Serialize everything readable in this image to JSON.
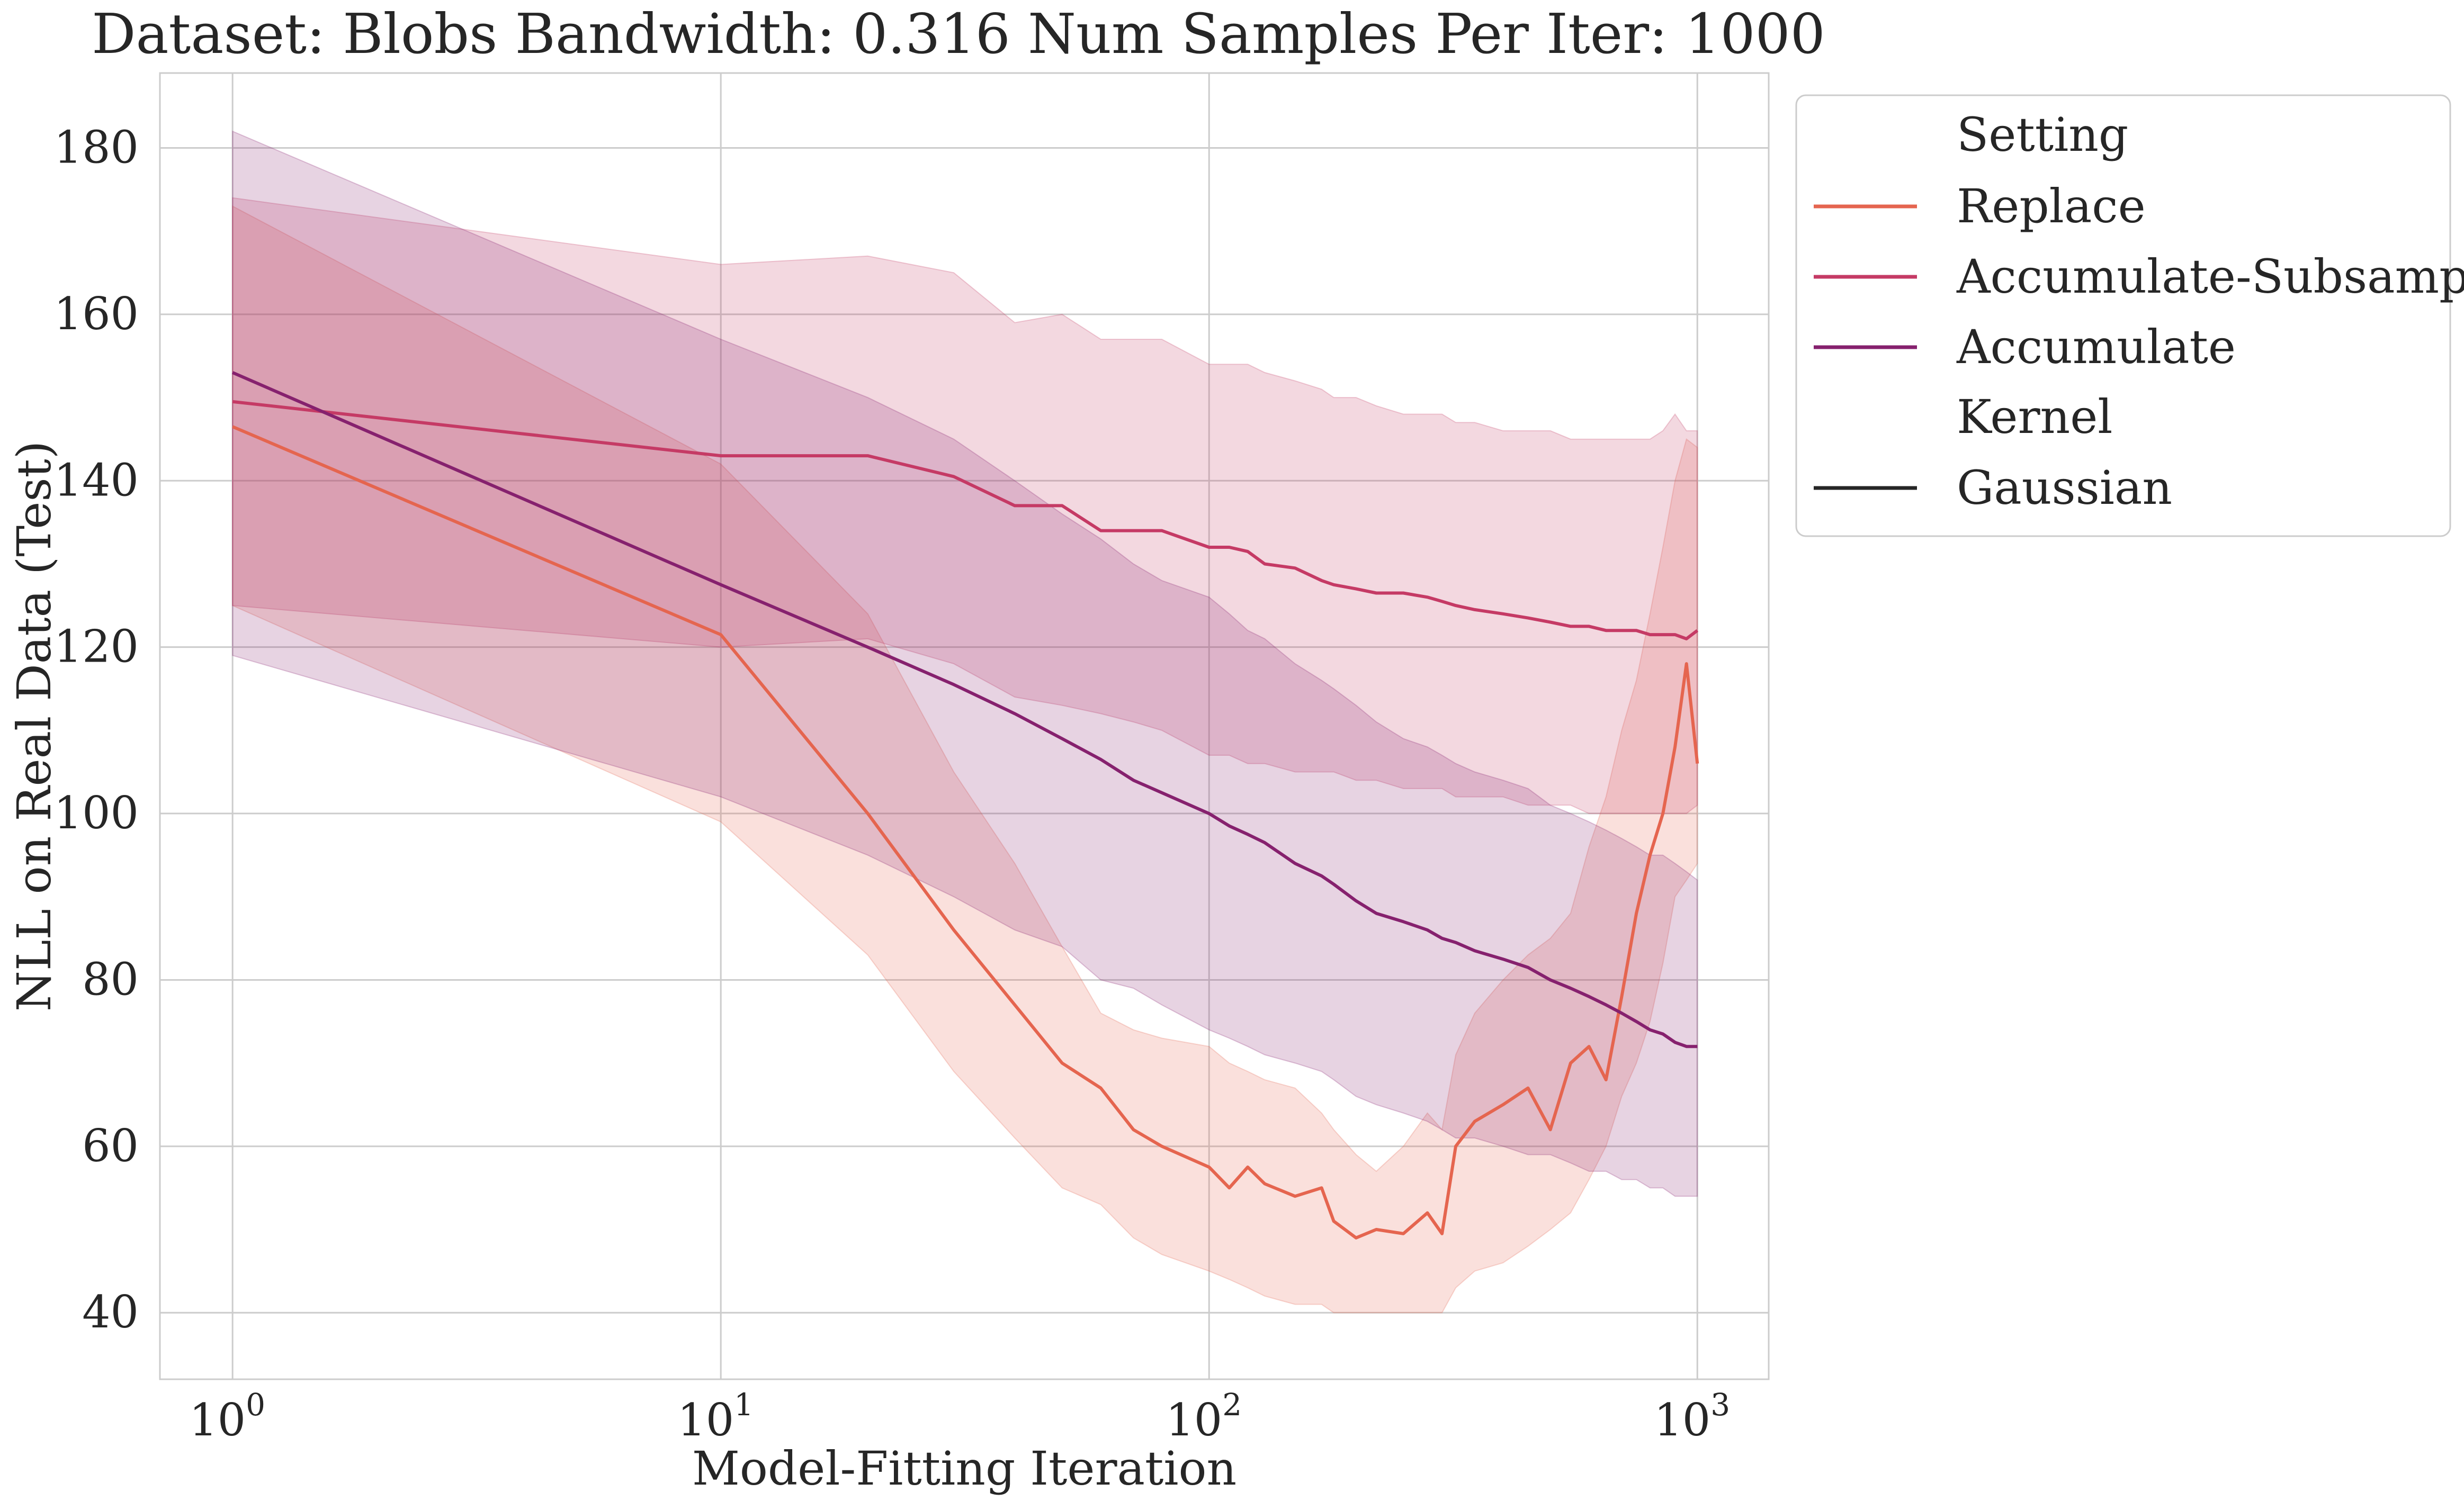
{
  "chart_data": {
    "type": "line",
    "title": "Dataset: Blobs Bandwidth: 0.316 Num Samples Per Iter: 1000",
    "xlabel": "Model-Fitting Iteration",
    "ylabel": "NLL on Real Data (Test)",
    "xscale": "log",
    "xlim": [
      0.71,
      1400
    ],
    "ylim": [
      32,
      189
    ],
    "grid": true,
    "x_ticks": [
      {
        "value": 1,
        "base": "10",
        "exp": "0"
      },
      {
        "value": 10,
        "base": "10",
        "exp": "1"
      },
      {
        "value": 100,
        "base": "10",
        "exp": "2"
      },
      {
        "value": 1000,
        "base": "10",
        "exp": "3"
      }
    ],
    "y_ticks": [
      {
        "value": 40,
        "label": "40"
      },
      {
        "value": 60,
        "label": "60"
      },
      {
        "value": 80,
        "label": "80"
      },
      {
        "value": 100,
        "label": "100"
      },
      {
        "value": 120,
        "label": "120"
      },
      {
        "value": 140,
        "label": "140"
      },
      {
        "value": 160,
        "label": "160"
      },
      {
        "value": 180,
        "label": "180"
      }
    ],
    "legend": {
      "placement": "outside-right",
      "setting_header": "Setting",
      "kernel_header": "Kernel",
      "kernel_entry": "Gaussian",
      "kernel_color": "#262626"
    },
    "series": [
      {
        "name": "Replace",
        "color": "#e5654f",
        "x": [
          1,
          10,
          20,
          30,
          40,
          50,
          60,
          70,
          80,
          100,
          110,
          120,
          130,
          150,
          170,
          180,
          200,
          220,
          250,
          280,
          300,
          320,
          350,
          400,
          450,
          500,
          550,
          600,
          650,
          700,
          750,
          800,
          850,
          900,
          950,
          1000
        ],
        "y": [
          146.5,
          121.5,
          100.0,
          86.0,
          77.0,
          70.0,
          67.0,
          62.0,
          60.0,
          57.5,
          55.0,
          57.5,
          55.5,
          54.0,
          55.0,
          51.0,
          49.0,
          50.0,
          49.5,
          52.0,
          49.5,
          60.0,
          63.0,
          65.0,
          67.0,
          62.0,
          70.0,
          72.0,
          68.0,
          78.0,
          88.0,
          95.0,
          100.0,
          108.0,
          118.0,
          106.0
        ],
        "lower": [
          125,
          99,
          83,
          69,
          61,
          55,
          53,
          49,
          47,
          45,
          44,
          43,
          42,
          41,
          41,
          40,
          40,
          40,
          40,
          40,
          40,
          43,
          45,
          46,
          48,
          50,
          52,
          56,
          60,
          66,
          70,
          75,
          82,
          90,
          92,
          94
        ],
        "upper": [
          173,
          142,
          124,
          105,
          94,
          84,
          76,
          74,
          73,
          72,
          70,
          69,
          68,
          67,
          64,
          62,
          59,
          57,
          60,
          64,
          62,
          71,
          76,
          80,
          83,
          85,
          88,
          96,
          102,
          110,
          116,
          124,
          132,
          140,
          145,
          144
        ]
      },
      {
        "name": "Accumulate-Subsample",
        "color": "#c53a65",
        "x": [
          1,
          10,
          20,
          30,
          40,
          50,
          60,
          70,
          80,
          100,
          110,
          120,
          130,
          150,
          170,
          180,
          200,
          220,
          250,
          280,
          300,
          320,
          350,
          400,
          450,
          500,
          550,
          600,
          650,
          700,
          750,
          800,
          850,
          900,
          950,
          1000
        ],
        "y": [
          149.5,
          143.0,
          143.0,
          140.5,
          137.0,
          137.0,
          134.0,
          134.0,
          134.0,
          132.0,
          132.0,
          131.5,
          130.0,
          129.5,
          128.0,
          127.5,
          127.0,
          126.5,
          126.5,
          126.0,
          125.5,
          125.0,
          124.5,
          124.0,
          123.5,
          123.0,
          122.5,
          122.5,
          122.0,
          122.0,
          122.0,
          121.5,
          121.5,
          121.5,
          121.0,
          122.0
        ],
        "lower": [
          125,
          120,
          121,
          118,
          114,
          113,
          112,
          111,
          110,
          107,
          107,
          106,
          106,
          105,
          105,
          105,
          104,
          104,
          103,
          103,
          103,
          102,
          102,
          102,
          101,
          101,
          101,
          100,
          100,
          100,
          100,
          100,
          100,
          100,
          100,
          101
        ],
        "upper": [
          174,
          166,
          167,
          165,
          159,
          160,
          157,
          157,
          157,
          154,
          154,
          154,
          153,
          152,
          151,
          150,
          150,
          149,
          148,
          148,
          148,
          147,
          147,
          146,
          146,
          146,
          145,
          145,
          145,
          145,
          145,
          145,
          146,
          148,
          146,
          146
        ]
      },
      {
        "name": "Accumulate",
        "color": "#86216e",
        "x": [
          1,
          10,
          20,
          30,
          40,
          50,
          60,
          70,
          80,
          100,
          110,
          120,
          130,
          150,
          170,
          180,
          200,
          220,
          250,
          280,
          300,
          320,
          350,
          400,
          450,
          500,
          550,
          600,
          650,
          700,
          750,
          800,
          850,
          900,
          950,
          1000
        ],
        "y": [
          153.0,
          127.5,
          120.0,
          115.5,
          112.0,
          109.0,
          106.5,
          104.0,
          102.5,
          100.0,
          98.5,
          97.5,
          96.5,
          94.0,
          92.5,
          91.5,
          89.5,
          88.0,
          87.0,
          86.0,
          85.0,
          84.5,
          83.5,
          82.5,
          81.5,
          80.0,
          79.0,
          78.0,
          77.0,
          76.0,
          75.0,
          74.0,
          73.5,
          72.5,
          72.0,
          72.0
        ],
        "lower": [
          119,
          102,
          95,
          90,
          86,
          84,
          80,
          79,
          77,
          74,
          73,
          72,
          71,
          70,
          69,
          68,
          66,
          65,
          64,
          63,
          62,
          61,
          61,
          60,
          59,
          59,
          58,
          57,
          57,
          56,
          56,
          55,
          55,
          54,
          54,
          54
        ],
        "upper": [
          182,
          157,
          150,
          145,
          140,
          136,
          133,
          130,
          128,
          126,
          124,
          122,
          121,
          118,
          116,
          115,
          113,
          111,
          109,
          108,
          107,
          106,
          105,
          104,
          103,
          101,
          100,
          99,
          98,
          97,
          96,
          95,
          95,
          94,
          93,
          92
        ]
      }
    ]
  }
}
